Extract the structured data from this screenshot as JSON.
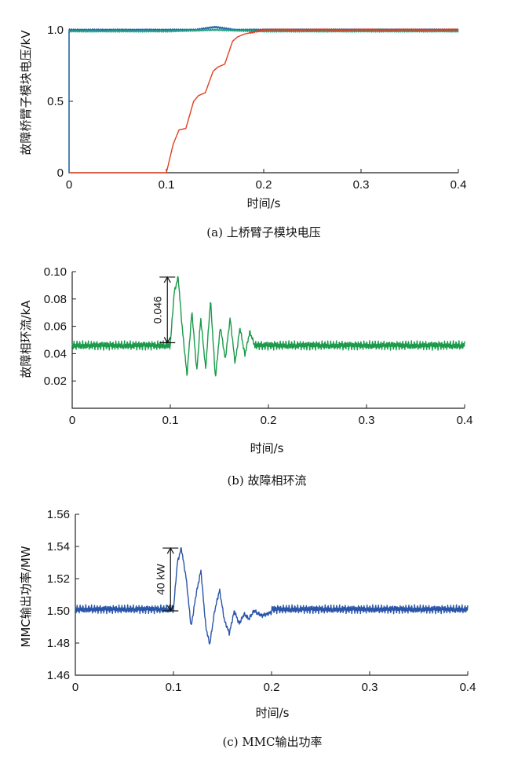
{
  "chart_data": [
    {
      "type": "line",
      "caption": "(a) 上桥臂子模块电压",
      "xlabel": "时间/s",
      "ylabel": "故障桥臂子模块电压/kV",
      "xlim": [
        0,
        0.4
      ],
      "ylim": [
        0,
        1.0
      ],
      "xticks": [
        0,
        0.1,
        0.2,
        0.3,
        0.4
      ],
      "xtick_labels": [
        "0",
        "0.1",
        "0.2",
        "0.3",
        "0.4"
      ],
      "yticks": [
        0,
        0.5,
        1.0
      ],
      "ytick_labels": [
        "0",
        "0.5",
        "1.0"
      ],
      "grid": false,
      "series": [
        {
          "color": "#1f5fa8",
          "x": [
            0,
            0.05,
            0.1,
            0.13,
            0.15,
            0.17,
            0.2,
            0.3,
            0.4
          ],
          "y": [
            1.0,
            1.0,
            1.0,
            1.0,
            1.02,
            1.0,
            1.0,
            1.0,
            1.0
          ]
        },
        {
          "color": "#20a080",
          "x": [
            0,
            0.05,
            0.1,
            0.15,
            0.2,
            0.3,
            0.4
          ],
          "y": [
            0.99,
            0.99,
            0.99,
            1.0,
            0.99,
            0.99,
            0.99
          ]
        },
        {
          "color": "#e04020",
          "x": [
            0,
            0.1,
            0.107,
            0.113,
            0.12,
            0.128,
            0.133,
            0.14,
            0.148,
            0.153,
            0.16,
            0.168,
            0.173,
            0.18,
            0.2,
            0.3,
            0.4
          ],
          "y": [
            0,
            0,
            0.2,
            0.3,
            0.31,
            0.5,
            0.54,
            0.56,
            0.71,
            0.74,
            0.76,
            0.92,
            0.95,
            0.97,
            1.0,
            1.0,
            1.0
          ]
        }
      ]
    },
    {
      "type": "line",
      "caption": "(b) 故障相环流",
      "xlabel": "时间/s",
      "ylabel": "故障相环流/kA",
      "xlim": [
        0,
        0.4
      ],
      "ylim": [
        0,
        0.1
      ],
      "xticks": [
        0,
        0.1,
        0.2,
        0.3,
        0.4
      ],
      "xtick_labels": [
        "0",
        "0.1",
        "0.2",
        "0.3",
        "0.4"
      ],
      "yticks": [
        0.02,
        0.04,
        0.06,
        0.08,
        0.1
      ],
      "ytick_labels": [
        "0.02",
        "0.04",
        "0.06",
        "0.08",
        "0.10"
      ],
      "grid": false,
      "annotation": {
        "text": "0.046",
        "x": 0.097,
        "y_from": 0.048,
        "y_to": 0.096
      },
      "series": [
        {
          "color": "#1a9a4a",
          "baseline": 0.046,
          "ripple": 0.0035,
          "x": [
            0.1,
            0.104,
            0.108,
            0.112,
            0.117,
            0.122,
            0.127,
            0.131,
            0.136,
            0.141,
            0.146,
            0.151,
            0.156,
            0.161,
            0.166,
            0.171,
            0.176,
            0.181,
            0.186
          ],
          "y": [
            0.047,
            0.085,
            0.096,
            0.06,
            0.024,
            0.071,
            0.027,
            0.066,
            0.029,
            0.079,
            0.022,
            0.06,
            0.036,
            0.066,
            0.033,
            0.059,
            0.039,
            0.056,
            0.046
          ]
        }
      ]
    },
    {
      "type": "line",
      "caption": "(c) MMC输出功率",
      "xlabel": "时间/s",
      "ylabel": "MMC输出功率/MW",
      "xlim": [
        0,
        0.4
      ],
      "ylim": [
        1.46,
        1.56
      ],
      "xticks": [
        0,
        0.1,
        0.2,
        0.3,
        0.4
      ],
      "xtick_labels": [
        "0",
        "0.1",
        "0.2",
        "0.3",
        "0.4"
      ],
      "yticks": [
        1.46,
        1.48,
        1.5,
        1.52,
        1.54,
        1.56
      ],
      "ytick_labels": [
        "1.46",
        "1.48",
        "1.50",
        "1.52",
        "1.54",
        "1.56"
      ],
      "grid": false,
      "annotation": {
        "text": "40 kW",
        "x": 0.097,
        "y_from": 1.5,
        "y_to": 1.539
      },
      "series": [
        {
          "color": "#2a55a8",
          "baseline": 1.501,
          "ripple": 0.0028,
          "x": [
            0.1,
            0.104,
            0.108,
            0.113,
            0.118,
            0.123,
            0.128,
            0.133,
            0.137,
            0.142,
            0.147,
            0.152,
            0.157,
            0.162,
            0.167,
            0.172,
            0.177,
            0.182,
            0.19,
            0.2
          ],
          "y": [
            1.501,
            1.53,
            1.539,
            1.52,
            1.49,
            1.51,
            1.525,
            1.49,
            1.479,
            1.5,
            1.513,
            1.494,
            1.486,
            1.5,
            1.492,
            1.498,
            1.495,
            1.5,
            1.497,
            1.499
          ]
        }
      ]
    }
  ]
}
